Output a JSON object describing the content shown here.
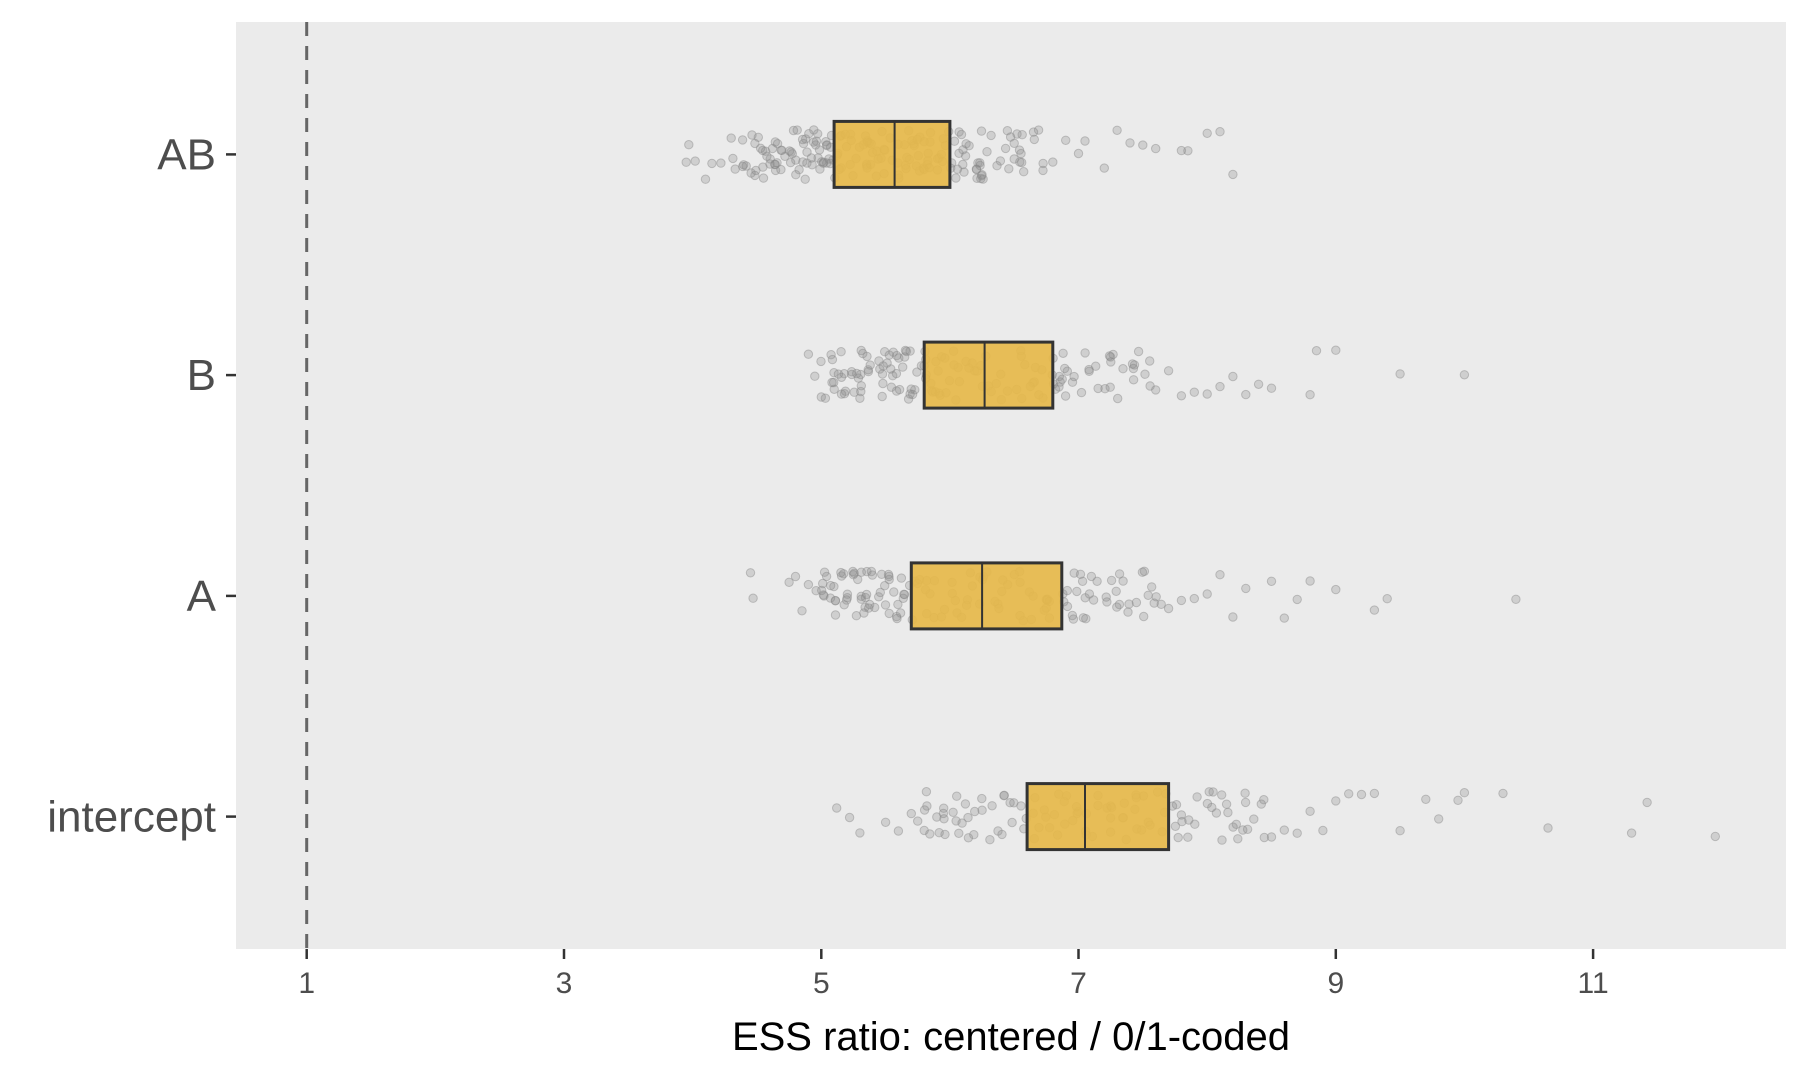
{
  "chart_data": {
    "type": "boxplot",
    "orientation": "horizontal",
    "title": "",
    "xlabel": "ESS ratio: centered / 0/1-coded",
    "ylabel": "",
    "xlim": [
      0.45,
      12.5
    ],
    "xticks": [
      1,
      3,
      5,
      7,
      9,
      11
    ],
    "xtick_labels": [
      "1",
      "3",
      "5",
      "7",
      "9",
      "11"
    ],
    "reference_line": {
      "x": 1,
      "style": "dashed"
    },
    "grid": false,
    "panel_background": "#ebebeb",
    "box_fill": "#e6b84a",
    "box_stroke": "#333333",
    "point_color": "#888888",
    "categories": [
      "AB",
      "B",
      "A",
      "intercept"
    ],
    "boxes": [
      {
        "name": "AB",
        "q1": 5.1,
        "median": 5.57,
        "q3": 6.0
      },
      {
        "name": "B",
        "q1": 5.8,
        "median": 6.27,
        "q3": 6.8
      },
      {
        "name": "A",
        "q1": 5.7,
        "median": 6.25,
        "q3": 6.87
      },
      {
        "name": "intercept",
        "q1": 6.6,
        "median": 7.05,
        "q3": 7.7
      }
    ],
    "points": {
      "AB": [
        3.95,
        3.97,
        4.02,
        4.1,
        4.15,
        4.22,
        4.3,
        4.35,
        4.42,
        4.5,
        4.55,
        4.6,
        4.65,
        4.7,
        4.72,
        4.76,
        4.8,
        4.84,
        4.88,
        4.92,
        4.95,
        5.0,
        5.02,
        5.05,
        5.1,
        5.15,
        5.2,
        5.25,
        5.3,
        5.35,
        5.4,
        5.45,
        5.5,
        5.55,
        5.6,
        5.65,
        5.7,
        5.75,
        5.8,
        5.85,
        5.9,
        5.95,
        6.0,
        6.05,
        6.1,
        6.15,
        6.2,
        6.25,
        6.3,
        6.4,
        6.5,
        6.55,
        6.6,
        6.7,
        6.8,
        6.9,
        7.0,
        7.05,
        7.2,
        7.3,
        7.4,
        7.5,
        7.6,
        7.8,
        7.85,
        8.0,
        8.1,
        8.2
      ],
      "B": [
        4.9,
        4.95,
        5.0,
        5.05,
        5.1,
        5.15,
        5.2,
        5.25,
        5.3,
        5.35,
        5.4,
        5.45,
        5.5,
        5.55,
        5.6,
        5.65,
        5.7,
        5.75,
        5.8,
        5.85,
        5.9,
        5.95,
        6.0,
        6.1,
        6.2,
        6.3,
        6.4,
        6.5,
        6.6,
        6.7,
        6.8,
        6.85,
        6.9,
        7.0,
        7.1,
        7.2,
        7.3,
        7.4,
        7.5,
        7.6,
        7.7,
        7.8,
        7.9,
        8.0,
        8.1,
        8.2,
        8.3,
        8.4,
        8.5,
        8.8,
        8.85,
        9.0,
        9.5,
        10.0
      ],
      "A": [
        4.45,
        4.47,
        4.75,
        4.8,
        4.85,
        4.9,
        5.0,
        5.05,
        5.1,
        5.15,
        5.2,
        5.25,
        5.3,
        5.35,
        5.4,
        5.45,
        5.5,
        5.55,
        5.6,
        5.65,
        5.7,
        5.8,
        5.9,
        6.0,
        6.1,
        6.2,
        6.3,
        6.4,
        6.5,
        6.6,
        6.7,
        6.8,
        6.9,
        6.95,
        7.0,
        7.1,
        7.2,
        7.3,
        7.4,
        7.5,
        7.6,
        7.7,
        7.8,
        7.9,
        8.0,
        8.1,
        8.2,
        8.3,
        8.5,
        8.6,
        8.7,
        8.8,
        9.0,
        9.3,
        9.4,
        10.4
      ],
      "intercept": [
        5.12,
        5.22,
        5.3,
        5.5,
        5.6,
        5.7,
        5.75,
        5.8,
        5.85,
        5.9,
        6.0,
        6.1,
        6.2,
        6.3,
        6.4,
        6.5,
        6.6,
        6.7,
        6.8,
        6.9,
        7.0,
        7.1,
        7.2,
        7.3,
        7.4,
        7.5,
        7.6,
        7.7,
        7.8,
        7.9,
        8.0,
        8.1,
        8.2,
        8.3,
        8.4,
        8.5,
        8.6,
        8.7,
        8.8,
        8.9,
        9.0,
        9.1,
        9.2,
        9.3,
        9.5,
        9.7,
        9.8,
        9.95,
        10.0,
        10.3,
        10.65,
        11.3,
        11.42,
        11.95
      ]
    }
  }
}
